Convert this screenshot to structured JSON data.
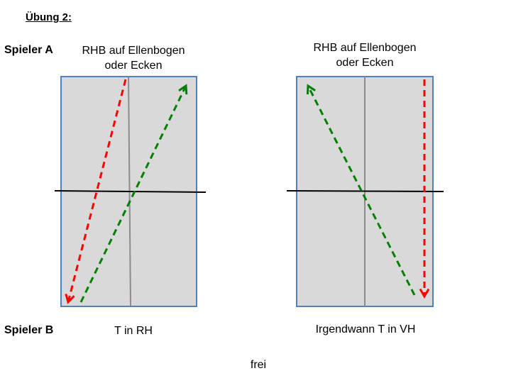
{
  "title": "Übung 2:",
  "player_a": "Spieler A",
  "player_b": "Spieler B",
  "court_left": {
    "top_caption_line1": "RHB auf Ellenbogen",
    "top_caption_line2": "oder Ecken",
    "bottom_caption": "T in RH"
  },
  "court_right": {
    "top_caption_line1": "RHB auf Ellenbogen",
    "top_caption_line2": "oder Ecken",
    "bottom_caption": "Irgendwann T in VH"
  },
  "footer": "frei",
  "colors": {
    "court_fill": "#d9d9d9",
    "court_border": "#4f81bd",
    "center_line": "#8c8c8c",
    "net": "#000000",
    "arrow_red": "#ff0000",
    "arrow_green": "#008000"
  }
}
